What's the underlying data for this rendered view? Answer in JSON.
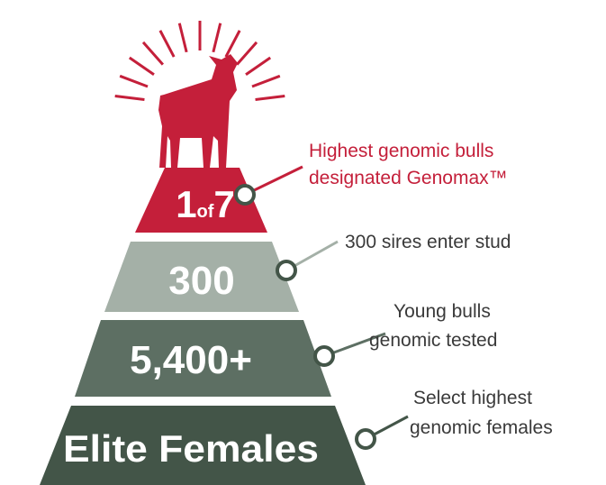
{
  "tiers": [
    {
      "label_parts": [
        "1",
        "of",
        "7"
      ],
      "description": [
        "Highest genomic bulls",
        "designated Genomax™"
      ]
    },
    {
      "label": "300",
      "description": [
        "300 sires enter stud"
      ]
    },
    {
      "label": "5,400+",
      "description": [
        "Young bulls",
        "genomic tested"
      ]
    },
    {
      "label": "Elite Females",
      "description": [
        "Select highest",
        "genomic females"
      ]
    }
  ]
}
